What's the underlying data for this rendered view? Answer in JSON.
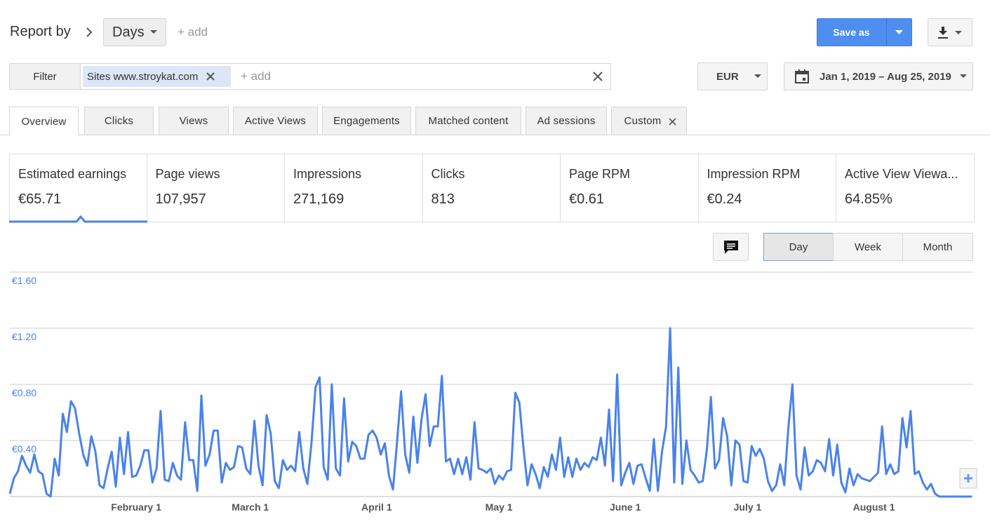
{
  "header": {
    "report_by": "Report by",
    "dimension": "Days",
    "add": "+ add",
    "save": "Save as"
  },
  "filter": {
    "label": "Filter",
    "chip": "Sites www.stroykat.com",
    "add": "+ add"
  },
  "currency": "EUR",
  "date_range": "Jan 1, 2019 – Aug 25, 2019",
  "tabs": [
    "Overview",
    "Clicks",
    "Views",
    "Active Views",
    "Engagements",
    "Matched content",
    "Ad sessions",
    "Custom"
  ],
  "metrics": [
    {
      "label": "Estimated earnings",
      "value": "€65.71"
    },
    {
      "label": "Page views",
      "value": "107,957"
    },
    {
      "label": "Impressions",
      "value": "271,169"
    },
    {
      "label": "Clicks",
      "value": "813"
    },
    {
      "label": "Page RPM",
      "value": "€0.61"
    },
    {
      "label": "Impression RPM",
      "value": "€0.24"
    },
    {
      "label": "Active View Viewa...",
      "value": "64.85%"
    }
  ],
  "granularity": [
    "Day",
    "Week",
    "Month"
  ],
  "chart_data": {
    "type": "line",
    "color": "#4a82ec",
    "grid": true,
    "xlim": [
      0,
      236
    ],
    "xticks": [
      {
        "value": 31,
        "label": "February 1"
      },
      {
        "value": 59,
        "label": "March 1"
      },
      {
        "value": 90,
        "label": "April 1"
      },
      {
        "value": 120,
        "label": "May 1"
      },
      {
        "value": 151,
        "label": "June 1"
      },
      {
        "value": 181,
        "label": "July 1"
      },
      {
        "value": 212,
        "label": "August 1"
      }
    ],
    "ylim": [
      0,
      1.6
    ],
    "yticks": [
      {
        "value": 0.4,
        "label": "€0.40"
      },
      {
        "value": 0.8,
        "label": "€0.80"
      },
      {
        "value": 1.2,
        "label": "€1.20"
      },
      {
        "value": 1.6,
        "label": "€1.60"
      }
    ],
    "values": [
      0.02,
      0.13,
      0.18,
      0.29,
      0.22,
      0.17,
      0.3,
      0.18,
      0.16,
      0.02,
      0,
      0.27,
      0.15,
      0.59,
      0.46,
      0.68,
      0.63,
      0.45,
      0.3,
      0.22,
      0.43,
      0.32,
      0.08,
      0.06,
      0.2,
      0.32,
      0.07,
      0.42,
      0.16,
      0.46,
      0.14,
      0.15,
      0.22,
      0.33,
      0.33,
      0.1,
      0.2,
      0.61,
      0.12,
      0.11,
      0.24,
      0.15,
      0.12,
      0.53,
      0.26,
      0.26,
      0.04,
      0.72,
      0.22,
      0.3,
      0.47,
      0.47,
      0.1,
      0.24,
      0.19,
      0.21,
      0.36,
      0.35,
      0.2,
      0.16,
      0.54,
      0.22,
      0.08,
      0.58,
      0.45,
      0.11,
      0.06,
      0.26,
      0.19,
      0.22,
      0.18,
      0.46,
      0.2,
      0.09,
      0.38,
      0.78,
      0.85,
      0.21,
      0.12,
      0.8,
      0.2,
      0.15,
      0.7,
      0.25,
      0.39,
      0.36,
      0.27,
      0.27,
      0.44,
      0.47,
      0.42,
      0.3,
      0.38,
      0.15,
      0.05,
      0.39,
      0.75,
      0.3,
      0.17,
      0.57,
      0.24,
      0.55,
      0.73,
      0.36,
      0.5,
      0.5,
      0.86,
      0.25,
      0.27,
      0.16,
      0.27,
      0.16,
      0.28,
      0.12,
      0.53,
      0.2,
      0.19,
      0.17,
      0.2,
      0.09,
      0.15,
      0.12,
      0.18,
      0.19,
      0.74,
      0.67,
      0.35,
      0.08,
      0.23,
      0.16,
      0.06,
      0.21,
      0.14,
      0.3,
      0.19,
      0.42,
      0.14,
      0.28,
      0.14,
      0.27,
      0.19,
      0.24,
      0.21,
      0.28,
      0.26,
      0.42,
      0.22,
      0.62,
      0.11,
      0.87,
      0.08,
      0.17,
      0.24,
      0.09,
      0.22,
      0.23,
      0.13,
      0.04,
      0.41,
      0.04,
      0.32,
      0.5,
      1.2,
      0.1,
      0.92,
      0.09,
      0.4,
      0.19,
      0.15,
      0.1,
      0.11,
      0.33,
      0.71,
      0.2,
      0.26,
      0.56,
      0.43,
      0.08,
      0.4,
      0.37,
      0.11,
      0.1,
      0.36,
      0.29,
      0.34,
      0.27,
      0.11,
      0.04,
      0.08,
      0.23,
      0.08,
      0.49,
      0.8,
      0.15,
      0.05,
      0.35,
      0.15,
      0.18,
      0.26,
      0.24,
      0.18,
      0.41,
      0.15,
      0.37,
      0.1,
      0.03,
      0.2,
      0.08,
      0.16,
      0.13,
      0.12,
      0.11,
      0.14,
      0.17,
      0.5,
      0.16,
      0.23,
      0.16,
      0.18,
      0.56,
      0.35,
      0.61,
      0.16,
      0.18,
      0.1,
      0.05,
      0.09,
      0.02,
      0,
      0,
      0,
      0,
      0,
      0,
      0,
      0,
      0
    ]
  }
}
